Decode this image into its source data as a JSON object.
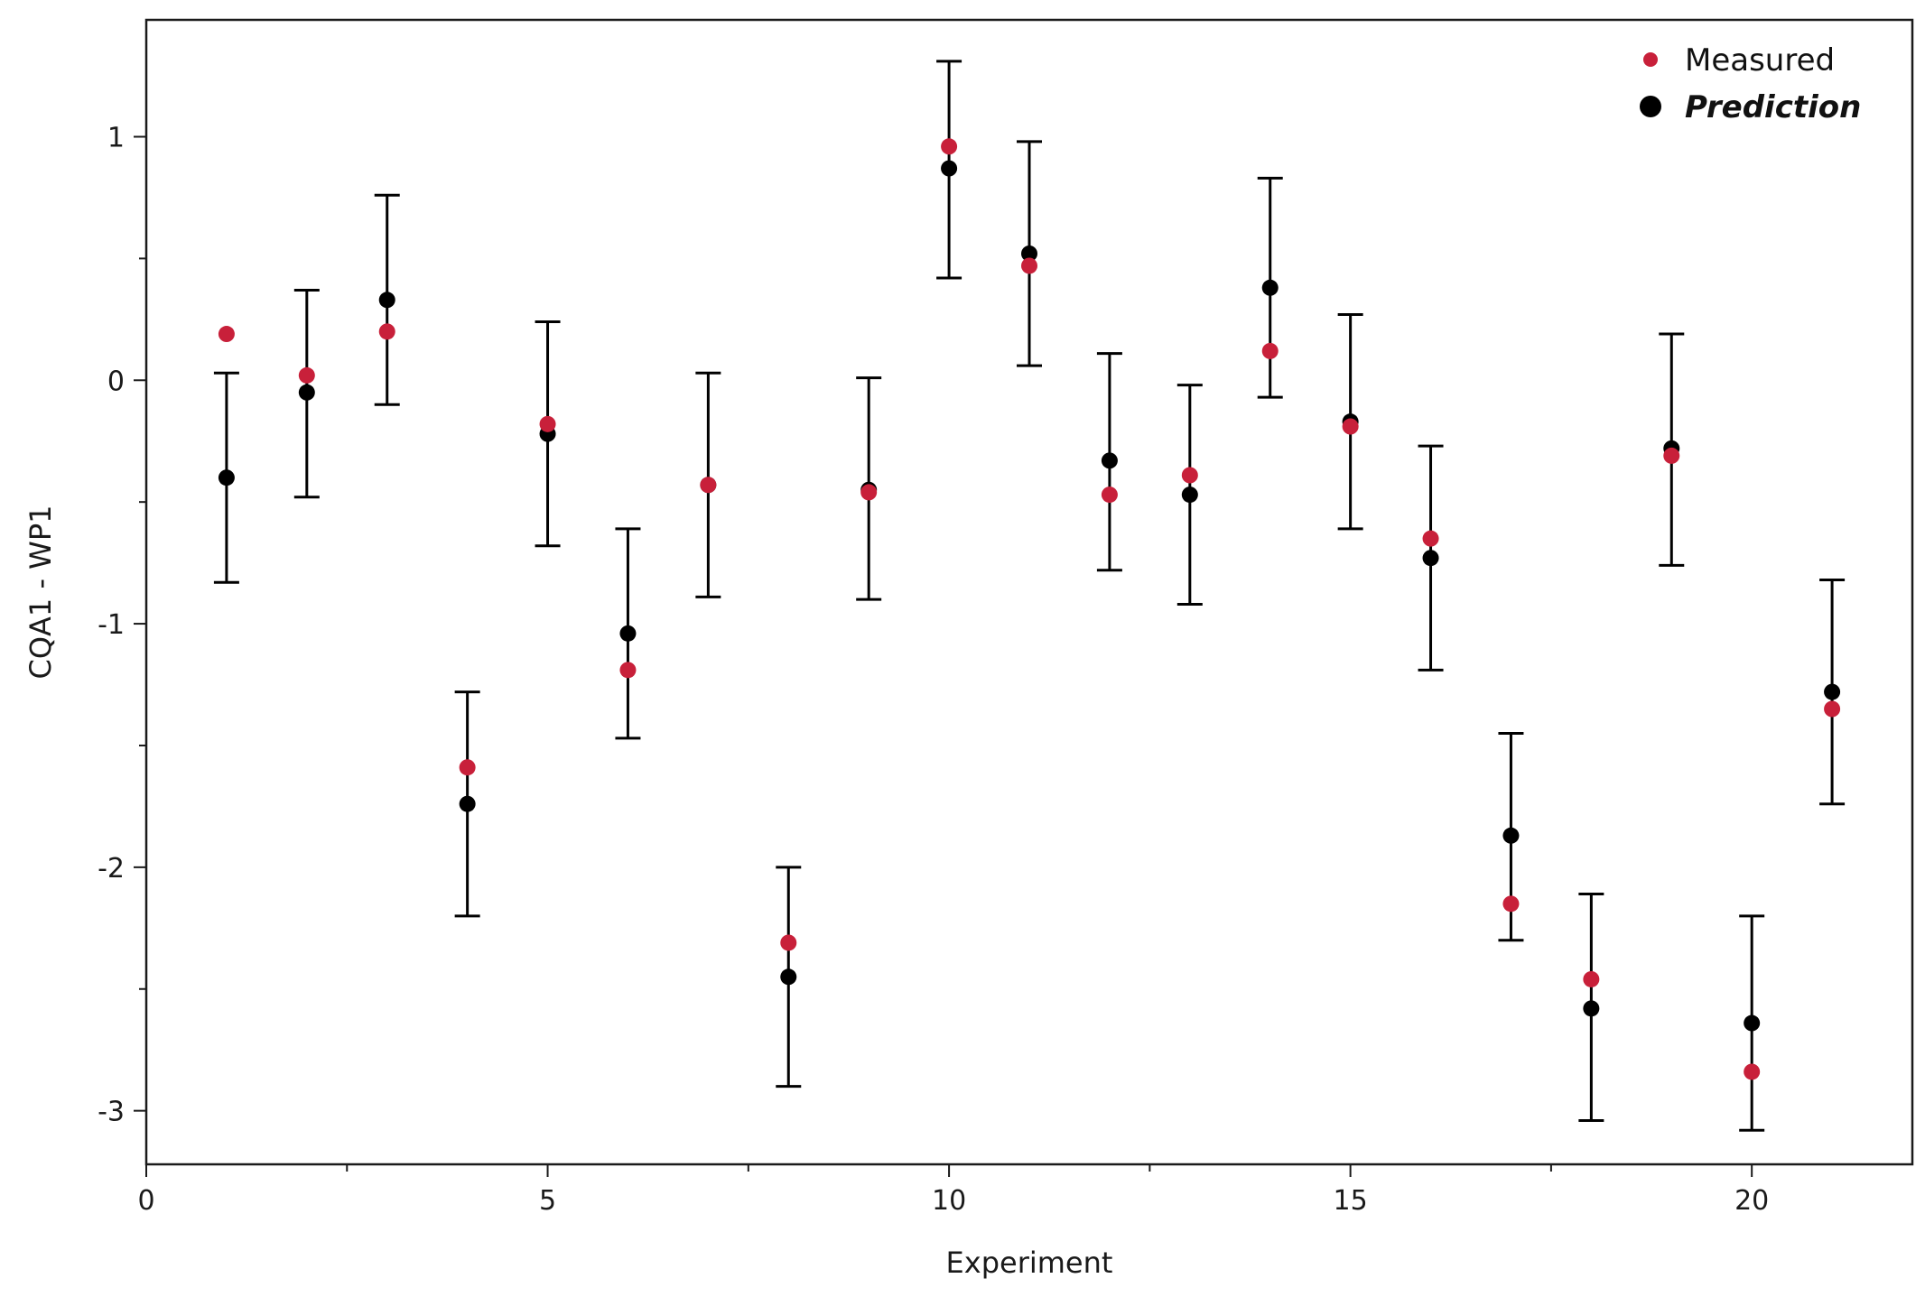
{
  "chart_data": {
    "type": "scatter",
    "title": "",
    "xlabel": "Experiment",
    "ylabel": "CQA1 - WP1",
    "xlim": [
      0,
      22
    ],
    "ylim": [
      -3.22,
      1.48
    ],
    "xticks": [
      0,
      5,
      10,
      15,
      20
    ],
    "xminor": [
      2.5,
      7.5,
      12.5,
      17.5
    ],
    "yticks": [
      -3,
      -2,
      -1,
      0,
      1
    ],
    "yminor": [
      -2.5,
      -1.5,
      -0.5,
      0.5
    ],
    "grid": false,
    "legend_position": "top-right",
    "series": [
      {
        "name": "Measured",
        "color": "#c8203a",
        "x": [
          1,
          2,
          3,
          4,
          5,
          6,
          7,
          8,
          9,
          10,
          11,
          12,
          13,
          14,
          15,
          16,
          17,
          18,
          19,
          20,
          21
        ],
        "y": [
          0.19,
          0.02,
          0.2,
          -1.59,
          -0.18,
          -1.19,
          -0.43,
          -2.31,
          -0.46,
          0.96,
          0.47,
          -0.47,
          -0.39,
          0.12,
          -0.19,
          -0.65,
          -2.15,
          -2.46,
          -0.31,
          -2.84,
          -1.35
        ]
      },
      {
        "name": "Prediction",
        "color": "#000000",
        "x": [
          1,
          2,
          3,
          4,
          5,
          6,
          7,
          8,
          9,
          10,
          11,
          12,
          13,
          14,
          15,
          16,
          17,
          18,
          19,
          20,
          21
        ],
        "y": [
          -0.4,
          -0.05,
          0.33,
          -1.74,
          -0.22,
          -1.04,
          -0.43,
          -2.45,
          -0.45,
          0.87,
          0.52,
          -0.33,
          -0.47,
          0.38,
          -0.17,
          -0.73,
          -1.87,
          -2.58,
          -0.28,
          -2.64,
          -1.28
        ],
        "err_low": [
          -0.83,
          -0.48,
          -0.1,
          -2.2,
          -0.68,
          -1.47,
          -0.89,
          -2.9,
          -0.9,
          0.42,
          0.06,
          -0.78,
          -0.92,
          -0.07,
          -0.61,
          -1.19,
          -2.3,
          -3.04,
          -0.76,
          -3.08,
          -1.74
        ],
        "err_high": [
          0.03,
          0.37,
          0.76,
          -1.28,
          0.24,
          -0.61,
          0.03,
          -2.0,
          0.01,
          1.31,
          0.98,
          0.11,
          -0.02,
          0.83,
          0.27,
          -0.27,
          -1.45,
          -2.11,
          0.19,
          -2.2,
          -0.82
        ]
      }
    ]
  },
  "legend": {
    "measured_label": "Measured",
    "prediction_label": "Prediction"
  }
}
